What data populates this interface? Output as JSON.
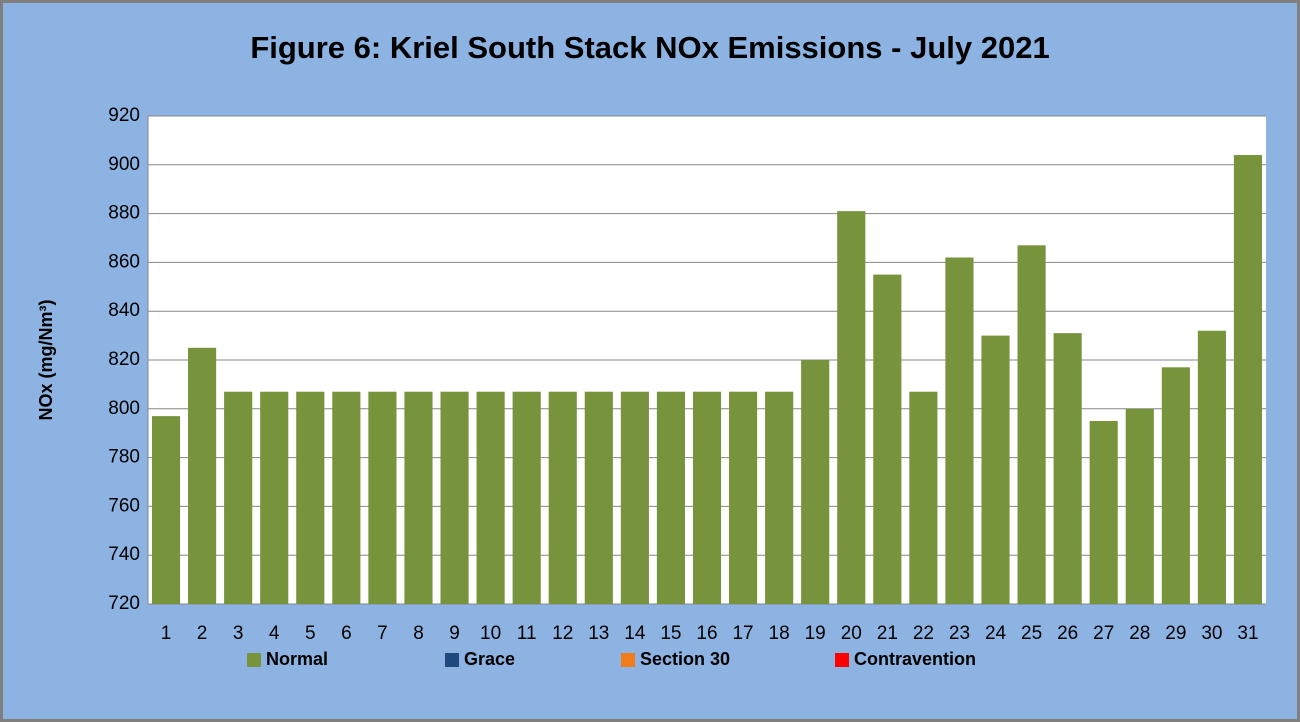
{
  "chart_data": {
    "type": "bar",
    "title": "Figure 6: Kriel South Stack NOx Emissions -  July 2021",
    "y_label": "NOx (mg/Nm³)",
    "categories": [
      "1",
      "2",
      "3",
      "4",
      "5",
      "6",
      "7",
      "8",
      "9",
      "10",
      "11",
      "12",
      "13",
      "14",
      "15",
      "16",
      "17",
      "18",
      "19",
      "20",
      "21",
      "22",
      "23",
      "24",
      "25",
      "26",
      "27",
      "28",
      "29",
      "30",
      "31"
    ],
    "series": [
      {
        "name": "Normal",
        "color": "#77933c",
        "values": [
          797,
          825,
          807,
          807,
          807,
          807,
          807,
          807,
          807,
          807,
          807,
          807,
          807,
          807,
          807,
          807,
          807,
          807,
          820,
          881,
          855,
          807,
          862,
          830,
          867,
          831,
          795,
          800,
          817,
          832,
          904
        ]
      },
      {
        "name": "Grace",
        "color": "#1f497d",
        "values": [
          null,
          null,
          null,
          null,
          null,
          null,
          null,
          null,
          null,
          null,
          null,
          null,
          null,
          null,
          null,
          null,
          null,
          null,
          null,
          null,
          null,
          null,
          null,
          null,
          null,
          null,
          null,
          null,
          null,
          null,
          null
        ]
      },
      {
        "name": "Section 30",
        "color": "#f07c1c",
        "values": [
          null,
          null,
          null,
          null,
          null,
          null,
          null,
          null,
          null,
          null,
          null,
          null,
          null,
          null,
          null,
          null,
          null,
          null,
          null,
          null,
          null,
          null,
          null,
          null,
          null,
          null,
          null,
          null,
          null,
          null,
          null
        ]
      },
      {
        "name": "Contravention",
        "color": "#ff0000",
        "values": [
          null,
          null,
          null,
          null,
          null,
          null,
          null,
          null,
          null,
          null,
          null,
          null,
          null,
          null,
          null,
          null,
          null,
          null,
          null,
          null,
          null,
          null,
          null,
          null,
          null,
          null,
          null,
          null,
          null,
          null,
          null
        ]
      }
    ],
    "ylim": [
      720,
      920
    ],
    "yticks": [
      720,
      740,
      760,
      780,
      800,
      820,
      840,
      860,
      880,
      900,
      920
    ],
    "grid": true,
    "legend": "bottom"
  }
}
